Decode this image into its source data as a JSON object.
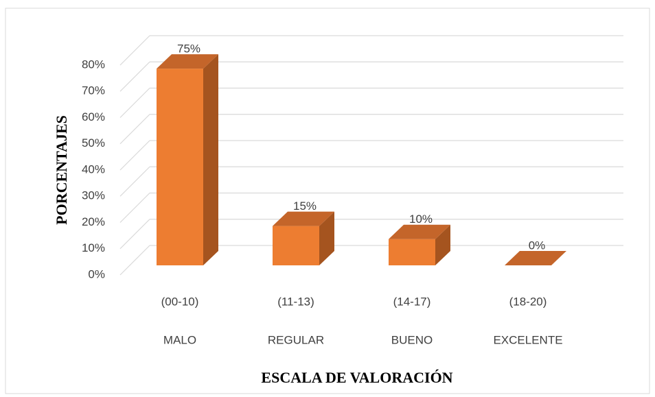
{
  "chart_data": {
    "type": "bar3d",
    "categories": [
      "(00-10)",
      "(11-13)",
      "(14-17)",
      "(18-20)"
    ],
    "category_names": [
      "MALO",
      "REGULAR",
      "BUENO",
      "EXCELENTE"
    ],
    "values": [
      75,
      15,
      10,
      0
    ],
    "value_labels": [
      "75%",
      "15%",
      "10%",
      "0%"
    ],
    "colors": {
      "front": "#ed7d31",
      "side": "#a5541f",
      "top": "#c4652a"
    },
    "ylim": [
      0,
      80
    ],
    "yticks": [
      {
        "value": 0,
        "label": "0%"
      },
      {
        "value": 10,
        "label": "10%"
      },
      {
        "value": 20,
        "label": "20%"
      },
      {
        "value": 30,
        "label": "30%"
      },
      {
        "value": 40,
        "label": "40%"
      },
      {
        "value": 50,
        "label": "50%"
      },
      {
        "value": 60,
        "label": "60%"
      },
      {
        "value": 70,
        "label": "70%"
      },
      {
        "value": 80,
        "label": "80%"
      }
    ],
    "grid": true,
    "ylabel": "PORCENTAJES",
    "xlabel": "ESCALA DE VALORACIÓN"
  }
}
